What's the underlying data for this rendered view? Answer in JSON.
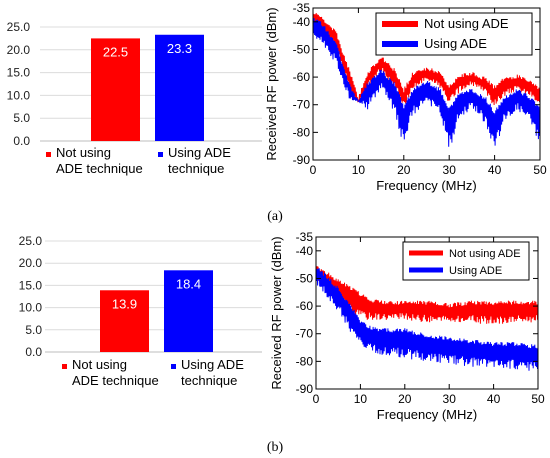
{
  "captions": {
    "a": "(a)",
    "b": "(b)"
  },
  "chart_data": [
    {
      "id": "a-bar",
      "type": "bar",
      "categories": [
        "Not using\nADE technique",
        "Using ADE\ntechnique"
      ],
      "values": [
        22.5,
        23.3
      ],
      "value_labels": [
        "22.5",
        "23.3"
      ],
      "colors": [
        "#ff0000",
        "#0000ff"
      ],
      "ylim": [
        0,
        25
      ],
      "yticks": [
        "0.0",
        "5.0",
        "10.0",
        "15.0",
        "20.0",
        "25.0"
      ],
      "grid": true,
      "legend_position": "bottom",
      "title": "",
      "xlabel": "",
      "ylabel": ""
    },
    {
      "id": "a-spectrum",
      "type": "line",
      "xlabel": "Frequency (MHz)",
      "ylabel": "Received RF power (dBm)",
      "xlim": [
        0,
        50
      ],
      "ylim": [
        -90,
        -35
      ],
      "xticks": [
        "0",
        "10",
        "20",
        "30",
        "40",
        "50"
      ],
      "yticks": [
        "-35",
        "-40",
        "-50",
        "-60",
        "-70",
        "-80",
        "-90"
      ],
      "grid": false,
      "legend_position": "top-right",
      "series": [
        {
          "name": "Not using ADE",
          "color": "#ff0000",
          "x": [
            0,
            2,
            5,
            8,
            10,
            12,
            15,
            18,
            20,
            22,
            25,
            28,
            30,
            32,
            35,
            38,
            40,
            42,
            45,
            48,
            50
          ],
          "upper": [
            -36,
            -38,
            -43,
            -57,
            -67,
            -58,
            -52,
            -57,
            -64,
            -58,
            -56,
            -58,
            -63,
            -59,
            -58,
            -60,
            -63,
            -60,
            -59,
            -61,
            -64
          ],
          "lower": [
            -42,
            -44,
            -50,
            -65,
            -70,
            -64,
            -58,
            -64,
            -71,
            -65,
            -61,
            -64,
            -70,
            -66,
            -63,
            -66,
            -71,
            -67,
            -65,
            -67,
            -71
          ]
        },
        {
          "name": "Using ADE",
          "color": "#0000ff",
          "x": [
            0,
            2,
            5,
            8,
            10,
            12,
            15,
            18,
            20,
            22,
            25,
            28,
            30,
            32,
            35,
            38,
            40,
            42,
            45,
            48,
            50
          ],
          "upper": [
            -38,
            -40,
            -47,
            -62,
            -68,
            -62,
            -57,
            -62,
            -70,
            -64,
            -61,
            -64,
            -71,
            -66,
            -64,
            -67,
            -72,
            -67,
            -64,
            -67,
            -71
          ],
          "lower": [
            -46,
            -48,
            -55,
            -68,
            -69,
            -72,
            -64,
            -74,
            -85,
            -74,
            -69,
            -74,
            -87,
            -76,
            -71,
            -77,
            -87,
            -77,
            -72,
            -77,
            -85
          ]
        }
      ]
    },
    {
      "id": "b-bar",
      "type": "bar",
      "categories": [
        "Not using\nADE technique",
        "Using ADE\ntechnique"
      ],
      "values": [
        13.9,
        18.4
      ],
      "value_labels": [
        "13.9",
        "18.4"
      ],
      "colors": [
        "#ff0000",
        "#0000ff"
      ],
      "ylim": [
        0,
        25
      ],
      "yticks": [
        "0.0",
        "5.0",
        "10.0",
        "15.0",
        "20.0",
        "25.0"
      ],
      "grid": true,
      "legend_position": "bottom",
      "title": "",
      "xlabel": "",
      "ylabel": ""
    },
    {
      "id": "b-spectrum",
      "type": "line",
      "xlabel": "Frequency (MHz)",
      "ylabel": "Received RF power (dBm)",
      "xlim": [
        0,
        50
      ],
      "ylim": [
        -90,
        -35
      ],
      "xticks": [
        "0",
        "10",
        "20",
        "30",
        "40",
        "50"
      ],
      "yticks": [
        "-35",
        "-40",
        "-50",
        "-60",
        "-70",
        "-80",
        "-90"
      ],
      "grid": false,
      "legend_position": "top-right",
      "series": [
        {
          "name": "Not using ADE",
          "color": "#ff0000",
          "x": [
            0,
            2,
            5,
            8,
            10,
            12,
            15,
            20,
            25,
            30,
            35,
            40,
            45,
            50
          ],
          "upper": [
            -45,
            -47,
            -50,
            -53,
            -55,
            -57,
            -58,
            -58,
            -58,
            -59,
            -58,
            -58,
            -58,
            -58
          ],
          "lower": [
            -50,
            -53,
            -58,
            -63,
            -65,
            -65,
            -65,
            -65,
            -66,
            -66,
            -66,
            -67,
            -66,
            -66
          ]
        },
        {
          "name": "Using ADE",
          "color": "#0000ff",
          "x": [
            0,
            2,
            5,
            8,
            10,
            12,
            15,
            20,
            25,
            30,
            35,
            40,
            45,
            50
          ],
          "upper": [
            -45,
            -48,
            -53,
            -60,
            -65,
            -67,
            -68,
            -68,
            -70,
            -71,
            -72,
            -73,
            -73,
            -74
          ],
          "lower": [
            -52,
            -56,
            -62,
            -70,
            -75,
            -77,
            -78,
            -79,
            -80,
            -81,
            -82,
            -82,
            -83,
            -84
          ]
        }
      ]
    }
  ]
}
